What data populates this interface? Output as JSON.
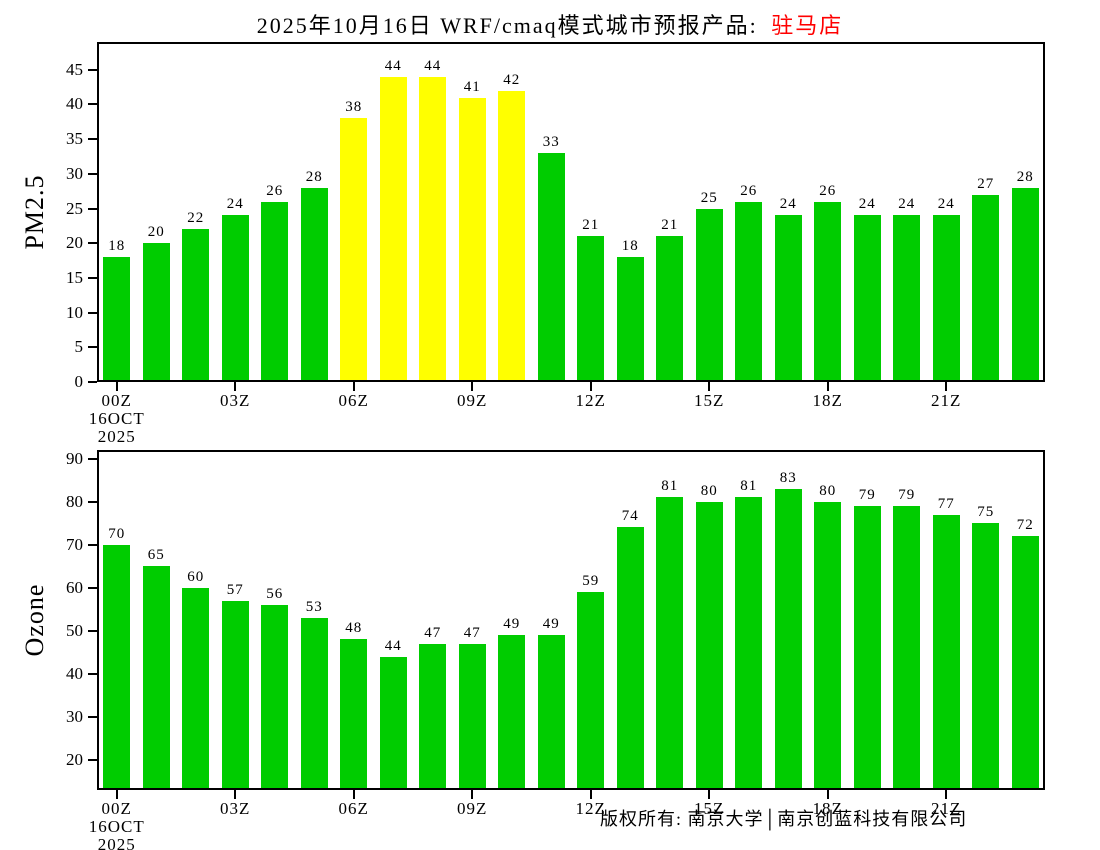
{
  "title": {
    "main": "2025年10月16日 WRF/cmaq模式城市预报产品: ",
    "city": "驻马店"
  },
  "footer": {
    "copyright": "版权所有: 南京大学│南京创蓝科技有限公司"
  },
  "colors": {
    "bar_green": "#00CC00",
    "bar_yellow": "#FFFF00",
    "city_red": "#FF0000",
    "axis_black": "#000000"
  },
  "chart_data": [
    {
      "type": "bar",
      "title": "",
      "ylabel": "PM2.5",
      "values": [
        18,
        20,
        22,
        24,
        26,
        28,
        38,
        44,
        44,
        41,
        42,
        33,
        21,
        18,
        21,
        25,
        26,
        24,
        26,
        24,
        24,
        24,
        27,
        28
      ],
      "bar_color": "#00CC00",
      "highlight_color": "#FFFF00",
      "highlight_indices": [
        6,
        7,
        8,
        9,
        10
      ],
      "ylim": [
        0,
        49
      ],
      "yticks": [
        0,
        5,
        10,
        15,
        20,
        25,
        30,
        35,
        40,
        45
      ],
      "xtick_indices": [
        0,
        3,
        6,
        9,
        12,
        15,
        18,
        21
      ],
      "xticklabels": [
        "00Z",
        "03Z",
        "06Z",
        "09Z",
        "12Z",
        "15Z",
        "18Z",
        "21Z"
      ],
      "x_sub_labels": [
        "16OCT",
        "2025"
      ],
      "grid": false,
      "legend": null
    },
    {
      "type": "bar",
      "title": "",
      "ylabel": "Ozone",
      "values": [
        70,
        65,
        60,
        57,
        56,
        53,
        48,
        44,
        47,
        47,
        49,
        49,
        59,
        74,
        81,
        80,
        81,
        83,
        80,
        79,
        79,
        77,
        75,
        72
      ],
      "bar_color": "#00CC00",
      "highlight_color": "#FFFF00",
      "highlight_indices": [],
      "ylim": [
        13,
        92
      ],
      "yticks": [
        20,
        30,
        40,
        50,
        60,
        70,
        80,
        90
      ],
      "xtick_indices": [
        0,
        3,
        6,
        9,
        12,
        15,
        18,
        21
      ],
      "xticklabels": [
        "00Z",
        "03Z",
        "06Z",
        "09Z",
        "12Z",
        "15Z",
        "18Z",
        "21Z"
      ],
      "x_sub_labels": [
        "16OCT",
        "2025"
      ],
      "grid": false,
      "legend": null
    }
  ]
}
